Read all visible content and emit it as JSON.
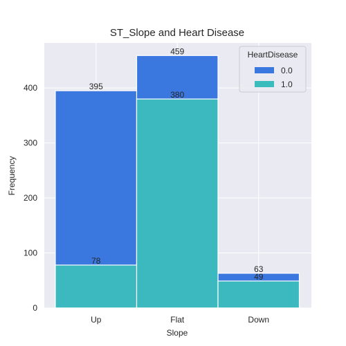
{
  "chart_data": {
    "type": "bar",
    "title": "ST_Slope and Heart Disease",
    "xlabel": "Slope",
    "ylabel": "Frequency",
    "categories": [
      "Up",
      "Flat",
      "Down"
    ],
    "series": [
      {
        "name": "0.0",
        "values": [
          395,
          459,
          63
        ],
        "color": "#3a78e0"
      },
      {
        "name": "1.0",
        "values": [
          78,
          380,
          49
        ],
        "color": "#3bbdbd"
      }
    ],
    "ylim": [
      0,
      482
    ],
    "yticks": [
      0,
      100,
      200,
      300,
      400
    ],
    "grid": true,
    "background": "#eaeaf2",
    "legend": {
      "title": "HeartDisease",
      "placement": "top-right"
    }
  }
}
